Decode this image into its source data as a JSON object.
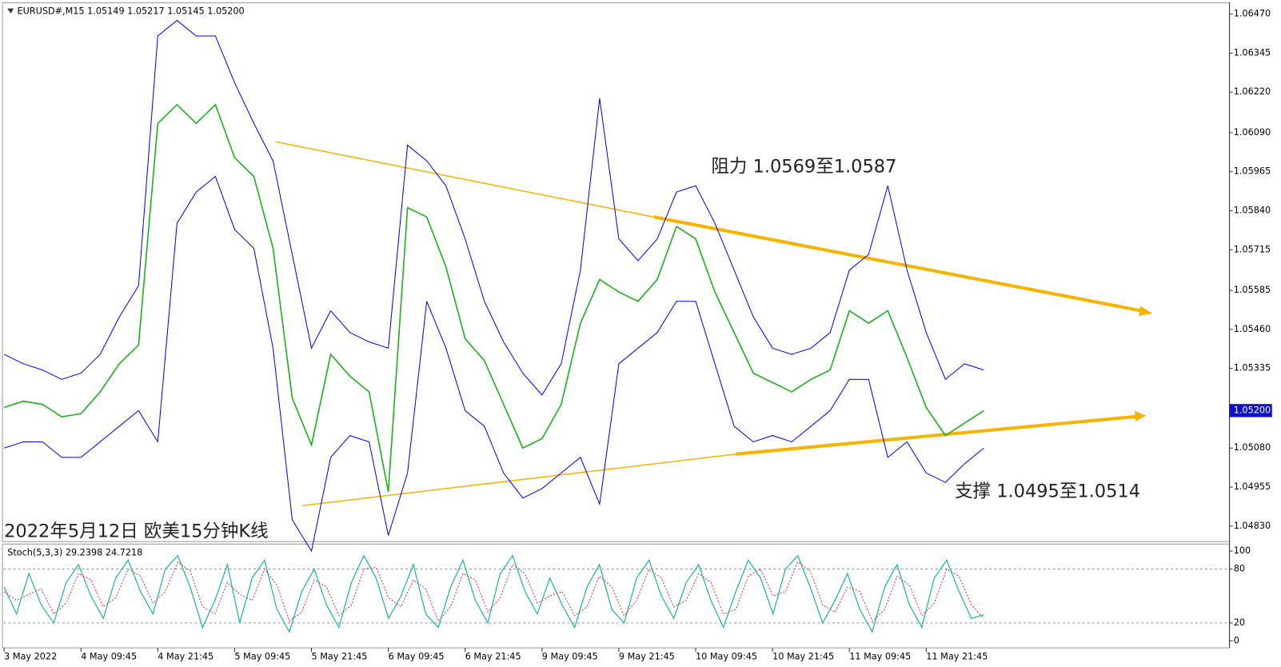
{
  "chart_data": [
    {
      "type": "line",
      "title": "EURUSD#,M15  1.05149 1.05217 1.05145 1.05200",
      "annotations": [
        "阻力 1.0569至1.0587",
        "支撑 1.0495至1.0514",
        "2022年5月12日 欧美15分钟K线"
      ],
      "categories": [
        "3 May 2022",
        null,
        null,
        null,
        "4 May 09:45",
        null,
        null,
        null,
        "4 May 21:45",
        null,
        null,
        null,
        "5 May 09:45",
        null,
        null,
        null,
        "5 May 21:45",
        null,
        null,
        null,
        "6 May 09:45",
        null,
        null,
        null,
        "6 May 21:45",
        null,
        null,
        null,
        "9 May 09:45",
        null,
        null,
        null,
        "9 May 21:45",
        null,
        null,
        null,
        "10 May 09:45",
        null,
        null,
        null,
        "10 May 21:45",
        null,
        null,
        null,
        "11 May 09:45",
        null,
        null,
        null,
        "11 May 21:45",
        null,
        null,
        null
      ],
      "series": [
        {
          "color": "#0000ff",
          "width": 1,
          "values": [
            1.0538,
            1.0535,
            1.0533,
            1.053,
            1.0532,
            1.0538,
            1.055,
            1.056,
            1.064,
            1.0645,
            1.064,
            1.064,
            1.0625,
            1.0612,
            1.06,
            1.057,
            1.054,
            1.0552,
            1.0545,
            1.0542,
            1.054,
            1.0605,
            1.06,
            1.0592,
            1.0575,
            1.0555,
            1.0542,
            1.0532,
            1.0525,
            1.0535,
            1.0565,
            1.062,
            1.0575,
            1.0568,
            1.0575,
            1.059,
            1.0592,
            1.058,
            1.0565,
            1.055,
            1.054,
            1.0538,
            1.054,
            1.0545,
            1.0565,
            1.057,
            1.0592,
            1.0565,
            1.0545,
            1.053,
            1.0535,
            1.0533
          ]
        },
        {
          "color": "#0000ff",
          "width": 1,
          "values": [
            1.0508,
            1.051,
            1.051,
            1.0505,
            1.0505,
            1.051,
            1.0515,
            1.052,
            1.051,
            1.058,
            1.059,
            1.0595,
            1.0578,
            1.0572,
            1.054,
            1.0485,
            1.0475,
            1.0505,
            1.0512,
            1.051,
            1.048,
            1.05,
            1.0555,
            1.054,
            1.052,
            1.0515,
            1.05,
            1.0492,
            1.0495,
            1.05,
            1.0505,
            1.049,
            1.0535,
            1.054,
            1.0545,
            1.0555,
            1.0555,
            1.0535,
            1.0515,
            1.051,
            1.0512,
            1.051,
            1.0515,
            1.052,
            1.053,
            1.053,
            1.0505,
            1.051,
            1.05,
            1.0497,
            1.0503,
            1.0508
          ]
        },
        {
          "color": "#22b022",
          "width": 1.6,
          "values": [
            1.0521,
            1.0523,
            1.0522,
            1.0518,
            1.0519,
            1.0526,
            1.0535,
            1.0541,
            1.0612,
            1.0618,
            1.0612,
            1.0618,
            1.0601,
            1.0595,
            1.0572,
            1.0524,
            1.0509,
            1.0538,
            1.0531,
            1.0526,
            1.0494,
            1.0585,
            1.0582,
            1.0566,
            1.0543,
            1.0536,
            1.0522,
            1.0508,
            1.0511,
            1.0522,
            1.0548,
            1.0562,
            1.0558,
            1.0555,
            1.0562,
            1.0579,
            1.0575,
            1.0558,
            1.0545,
            1.0532,
            1.0529,
            1.0526,
            1.053,
            1.0533,
            1.0552,
            1.0548,
            1.0552,
            1.0537,
            1.0521,
            1.0512,
            1.0516,
            1.052
          ]
        }
      ],
      "ylim": [
        1.04783,
        1.06501
      ],
      "yticks": [
        {
          "value": 1.0647,
          "label": "1.06470"
        },
        1.06345,
        {
          "value": 1.0622,
          "label": "1.06220"
        },
        {
          "value": 1.0609,
          "label": "1.06090"
        },
        1.05965,
        {
          "value": 1.0584,
          "label": "1.05840"
        },
        1.05715,
        1.05585,
        {
          "value": 1.0546,
          "label": "1.05460"
        },
        1.05335,
        {
          "value": 1.0508,
          "label": "1.05080"
        },
        1.04955,
        {
          "value": 1.0483,
          "label": "1.04830"
        }
      ],
      "last_price": {
        "value": 1.052,
        "label": "1.05200"
      },
      "grid": false
    },
    {
      "type": "line",
      "title": "Stoch(5,3,3) 29.2398 24.7218",
      "series": [
        {
          "color": "#20b2aa",
          "width": 1.2,
          "dashed": false,
          "values": [
            60,
            30,
            75,
            40,
            20,
            65,
            85,
            50,
            25,
            70,
            90,
            55,
            30,
            80,
            95,
            60,
            15,
            45,
            85,
            20,
            70,
            90,
            35,
            10,
            55,
            80,
            40,
            15,
            65,
            95,
            70,
            25,
            50,
            85,
            30,
            15,
            60,
            90,
            45,
            20,
            75,
            95,
            55,
            30,
            70,
            40,
            15,
            60,
            85,
            35,
            20,
            70,
            90,
            50,
            25,
            65,
            85,
            45,
            15,
            55,
            90,
            70,
            30,
            80,
            95,
            60,
            20,
            45,
            75,
            35,
            10,
            60,
            85,
            40,
            15,
            70,
            90,
            55,
            25,
            29.2398
          ]
        },
        {
          "color": "#e03030",
          "width": 1,
          "dashed": true,
          "values": [
            55,
            45,
            52,
            58,
            30,
            42,
            75,
            68,
            38,
            48,
            80,
            72,
            42,
            55,
            88,
            78,
            38,
            30,
            65,
            52,
            45,
            80,
            62,
            22,
            32,
            68,
            60,
            28,
            40,
            80,
            82,
            48,
            38,
            68,
            58,
            22,
            38,
            75,
            68,
            32,
            48,
            85,
            75,
            42,
            50,
            55,
            28,
            38,
            72,
            60,
            28,
            45,
            80,
            70,
            38,
            45,
            75,
            65,
            30,
            35,
            72,
            80,
            50,
            55,
            88,
            78,
            40,
            32,
            60,
            55,
            22,
            35,
            72,
            62,
            28,
            42,
            80,
            72,
            40,
            24.7218
          ]
        }
      ],
      "ylim": [
        -6,
        107
      ],
      "yticks": [
        0,
        20,
        80,
        100
      ],
      "grid": true
    }
  ]
}
